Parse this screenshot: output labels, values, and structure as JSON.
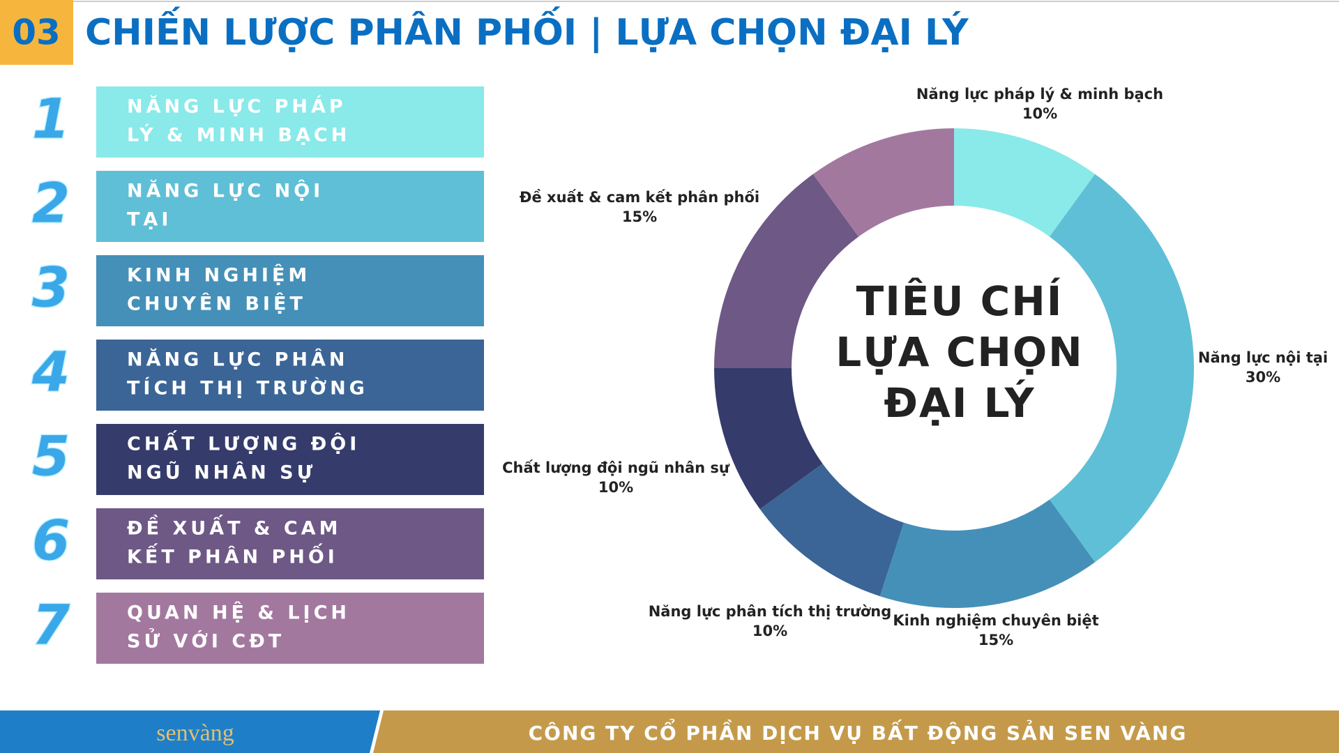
{
  "header": {
    "number": "03",
    "title": "CHIẾN LƯỢC PHÂN PHỐI | LỰA CHỌN ĐẠI LÝ"
  },
  "list": {
    "items": [
      {
        "number": "1",
        "lines": [
          "NĂNG LỰC PHÁP",
          "LÝ & MINH BẠCH"
        ],
        "color": "#8ae9e9"
      },
      {
        "number": "2",
        "lines": [
          "NĂNG LỰC NỘI",
          "TẠI"
        ],
        "color": "#5fbfd6"
      },
      {
        "number": "3",
        "lines": [
          "KINH NGHIỆM",
          "CHUYÊN BIỆT"
        ],
        "color": "#4590b8"
      },
      {
        "number": "4",
        "lines": [
          "NĂNG LỰC PHÂN",
          "TÍCH THỊ TRƯỜNG"
        ],
        "color": "#3b6596"
      },
      {
        "number": "5",
        "lines": [
          "CHẤT LƯỢNG ĐỘI",
          "NGŨ NHÂN SỰ"
        ],
        "color": "#353c6c"
      },
      {
        "number": "6",
        "lines": [
          "ĐỀ XUẤT & CAM",
          "KẾT PHÂN PHỐI"
        ],
        "color": "#6e5886"
      },
      {
        "number": "7",
        "lines": [
          "QUAN HỆ & LỊCH",
          "SỬ VỚI CĐT"
        ],
        "color": "#a3789f"
      }
    ]
  },
  "chart_data": {
    "type": "donut",
    "center_text": [
      "TIÊU CHÍ",
      "LỰA CHỌN",
      "ĐẠI LÝ"
    ],
    "categories": [
      "Năng lực pháp lý & minh bạch",
      "Năng lực nội tại",
      "Kinh nghiệm chuyên biệt",
      "Năng lực phân tích thị trường",
      "Chất lượng đội ngũ nhân sự",
      "Đề xuất & cam kết phân phối",
      null
    ],
    "values": [
      10,
      30,
      15,
      10,
      10,
      15,
      10
    ],
    "value_labels": [
      "10%",
      "30%",
      "15%",
      "10%",
      "10%",
      "15%",
      null
    ],
    "colors": [
      "#8ae9e9",
      "#5fbfd6",
      "#4590b8",
      "#3b6596",
      "#353c6c",
      "#6e5886",
      "#a3789f"
    ]
  },
  "footer": {
    "logo": "senvàng",
    "company": "CÔNG TY CỔ PHẦN DỊCH VỤ BẤT ĐỘNG SẢN SEN VÀNG"
  }
}
